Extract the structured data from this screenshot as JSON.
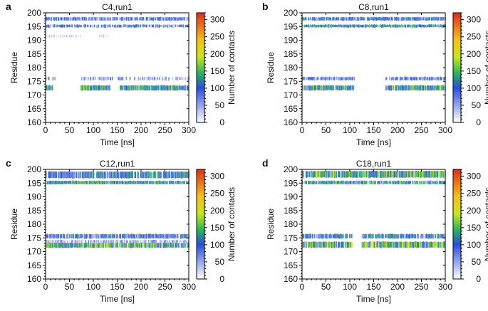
{
  "chart_data": [
    {
      "type": "heatmap",
      "panel_label": "a",
      "title": "C4,run1",
      "xlabel": "Time [ns]",
      "ylabel": "Residue",
      "colorbar_label": "Number of contacts",
      "xlim": [
        0,
        300
      ],
      "ylim": [
        160,
        200
      ],
      "clim": [
        0,
        320
      ],
      "xticks": [
        "0",
        "50",
        "100",
        "150",
        "200",
        "250",
        "300"
      ],
      "yticks": [
        "160",
        "165",
        "170",
        "175",
        "180",
        "185",
        "190",
        "195",
        "200"
      ],
      "cticks": [
        "0",
        "50",
        "100",
        "150",
        "200",
        "250",
        "300"
      ],
      "bands": [
        {
          "y0": 197.2,
          "y1": 198.4,
          "segments": [
            [
              0,
              300
            ]
          ],
          "level": 80,
          "density": 0.8
        },
        {
          "y0": 194.7,
          "y1": 195.7,
          "segments": [
            [
              0,
              300
            ]
          ],
          "level": 90,
          "density": 0.75
        },
        {
          "y0": 191.0,
          "y1": 192.0,
          "segments": [
            [
              0,
              80
            ],
            [
              110,
              140
            ]
          ],
          "level": 35,
          "density": 0.3
        },
        {
          "y0": 175.4,
          "y1": 176.6,
          "segments": [
            [
              0,
              20
            ],
            [
              75,
              140
            ],
            [
              150,
              300
            ]
          ],
          "level": 60,
          "density": 0.55
        },
        {
          "y0": 171.7,
          "y1": 173.5,
          "segments": [
            [
              0,
              15
            ],
            [
              72,
              135
            ],
            [
              155,
              300
            ]
          ],
          "level": 120,
          "density": 0.95
        }
      ]
    },
    {
      "type": "heatmap",
      "panel_label": "b",
      "title": "C8,run1",
      "xlabel": "Time [ns]",
      "ylabel": "Residue",
      "colorbar_label": "Number of contacts",
      "xlim": [
        0,
        300
      ],
      "ylim": [
        160,
        200
      ],
      "clim": [
        0,
        320
      ],
      "xticks": [
        "0",
        "50",
        "100",
        "150",
        "200",
        "250",
        "300"
      ],
      "yticks": [
        "160",
        "165",
        "170",
        "175",
        "180",
        "185",
        "190",
        "195",
        "200"
      ],
      "cticks": [
        "0",
        "50",
        "100",
        "150",
        "200",
        "250",
        "300"
      ],
      "bands": [
        {
          "y0": 197.2,
          "y1": 198.4,
          "segments": [
            [
              0,
              300
            ]
          ],
          "level": 95,
          "density": 0.85
        },
        {
          "y0": 194.7,
          "y1": 195.7,
          "segments": [
            [
              0,
              300
            ]
          ],
          "level": 115,
          "density": 0.9
        },
        {
          "y0": 175.4,
          "y1": 176.6,
          "segments": [
            [
              0,
              110
            ],
            [
              175,
              300
            ]
          ],
          "level": 80,
          "density": 0.8
        },
        {
          "y0": 171.7,
          "y1": 173.5,
          "segments": [
            [
              0,
              110
            ],
            [
              175,
              300
            ]
          ],
          "level": 125,
          "density": 0.95
        }
      ]
    },
    {
      "type": "heatmap",
      "panel_label": "c",
      "title": "C12,run1",
      "xlabel": "Time [ns]",
      "ylabel": "Residue",
      "colorbar_label": "Number of contacts",
      "xlim": [
        0,
        300
      ],
      "ylim": [
        160,
        200
      ],
      "clim": [
        0,
        320
      ],
      "xticks": [
        "0",
        "50",
        "100",
        "150",
        "200",
        "250",
        "300"
      ],
      "yticks": [
        "160",
        "165",
        "170",
        "175",
        "180",
        "185",
        "190",
        "195",
        "200"
      ],
      "cticks": [
        "0",
        "50",
        "100",
        "150",
        "200",
        "250",
        "300"
      ],
      "bands": [
        {
          "y0": 196.8,
          "y1": 199.2,
          "segments": [
            [
              0,
              300
            ]
          ],
          "level": 100,
          "density": 0.9
        },
        {
          "y0": 194.6,
          "y1": 195.8,
          "segments": [
            [
              0,
              300
            ]
          ],
          "level": 120,
          "density": 0.95
        },
        {
          "y0": 174.8,
          "y1": 176.4,
          "segments": [
            [
              0,
              300
            ]
          ],
          "level": 90,
          "density": 0.85
        },
        {
          "y0": 173.2,
          "y1": 174.2,
          "segments": [
            [
              0,
              300
            ]
          ],
          "level": 60,
          "density": 0.6
        },
        {
          "y0": 171.4,
          "y1": 173.2,
          "segments": [
            [
              0,
              300
            ]
          ],
          "level": 140,
          "density": 0.95
        }
      ]
    },
    {
      "type": "heatmap",
      "panel_label": "d",
      "title": "C18,run1",
      "xlabel": "Time [ns]",
      "ylabel": "Residue",
      "colorbar_label": "Number of contacts",
      "xlim": [
        0,
        300
      ],
      "ylim": [
        160,
        200
      ],
      "clim": [
        0,
        320
      ],
      "xticks": [
        "0",
        "50",
        "100",
        "150",
        "200",
        "250",
        "300"
      ],
      "yticks": [
        "160",
        "165",
        "170",
        "175",
        "180",
        "185",
        "190",
        "195",
        "200"
      ],
      "cticks": [
        "0",
        "50",
        "100",
        "150",
        "200",
        "250",
        "300"
      ],
      "bands": [
        {
          "y0": 197.0,
          "y1": 199.4,
          "segments": [
            [
              0,
              300
            ]
          ],
          "level": 140,
          "density": 0.95
        },
        {
          "y0": 194.6,
          "y1": 195.8,
          "segments": [
            [
              0,
              300
            ]
          ],
          "level": 120,
          "density": 0.9
        },
        {
          "y0": 174.8,
          "y1": 176.4,
          "segments": [
            [
              0,
              105
            ],
            [
              125,
              300
            ]
          ],
          "level": 100,
          "density": 0.85
        },
        {
          "y0": 171.4,
          "y1": 173.6,
          "segments": [
            [
              0,
              105
            ],
            [
              125,
              300
            ]
          ],
          "level": 145,
          "density": 0.95
        }
      ]
    }
  ],
  "colors": {
    "colormap": [
      "#ffffff",
      "#2b4bdd",
      "#22b060",
      "#c6e520",
      "#f5c21a",
      "#e02a1a"
    ]
  }
}
